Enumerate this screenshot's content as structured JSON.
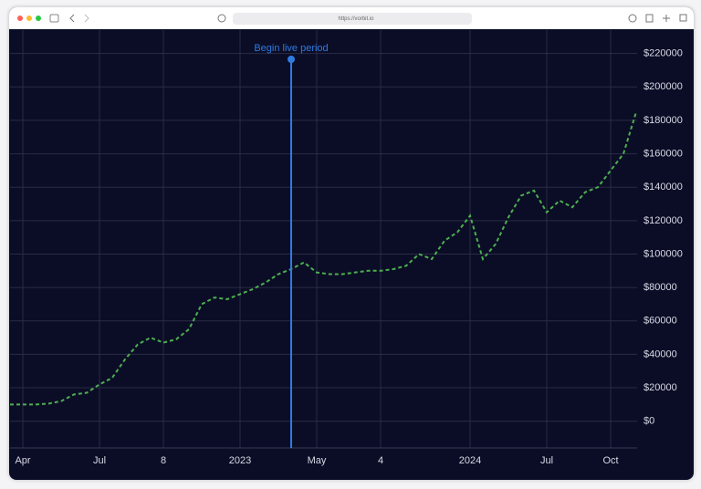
{
  "browser": {
    "url": "https://vorbit.io"
  },
  "chart_data": {
    "type": "line",
    "categories": [
      null,
      "Apr",
      null,
      null,
      null,
      null,
      null,
      "Jul",
      null,
      null,
      null,
      null,
      "8",
      null,
      null,
      null,
      null,
      null,
      "2023",
      null,
      null,
      null,
      null,
      null,
      "May",
      null,
      null,
      null,
      null,
      "4",
      null,
      null,
      null,
      null,
      null,
      null,
      "2024",
      null,
      null,
      null,
      null,
      null,
      "Jul",
      null,
      null,
      null,
      null,
      "Oct",
      null,
      null
    ],
    "series": [
      {
        "color": "#4caf50",
        "values": [
          10000,
          10000,
          10000,
          10500,
          12000,
          16000,
          17000,
          22000,
          26000,
          37000,
          46000,
          50000,
          47000,
          49000,
          55000,
          70000,
          74000,
          73000,
          76000,
          79000,
          83000,
          88000,
          91000,
          95000,
          89000,
          88000,
          88000,
          89000,
          90000,
          90000,
          91000,
          93000,
          100000,
          97000,
          108000,
          113000,
          123000,
          97000,
          106000,
          122000,
          135000,
          138000,
          125000,
          132000,
          128000,
          137000,
          140000,
          150000,
          160000,
          185000
        ]
      }
    ],
    "ylim": [
      -16000,
      234000
    ],
    "yticks": [
      {
        "value": 0,
        "label": "$0"
      },
      {
        "value": 20000,
        "label": "$20000"
      },
      {
        "value": 40000,
        "label": "$40000"
      },
      {
        "value": 60000,
        "label": "$60000"
      },
      {
        "value": 80000,
        "label": "$80000"
      },
      {
        "value": 100000,
        "label": "$100000"
      },
      {
        "value": 120000,
        "label": "$120000"
      },
      {
        "value": 140000,
        "label": "$140000"
      },
      {
        "value": 160000,
        "label": "$160000"
      },
      {
        "value": 180000,
        "label": "$180000"
      },
      {
        "value": 200000,
        "label": "$200000"
      },
      {
        "value": 220000,
        "label": "$220000"
      }
    ],
    "grid": true,
    "annotations": [
      {
        "text": "Begin live period",
        "x": 22,
        "color": "#2f7be0"
      }
    ]
  }
}
